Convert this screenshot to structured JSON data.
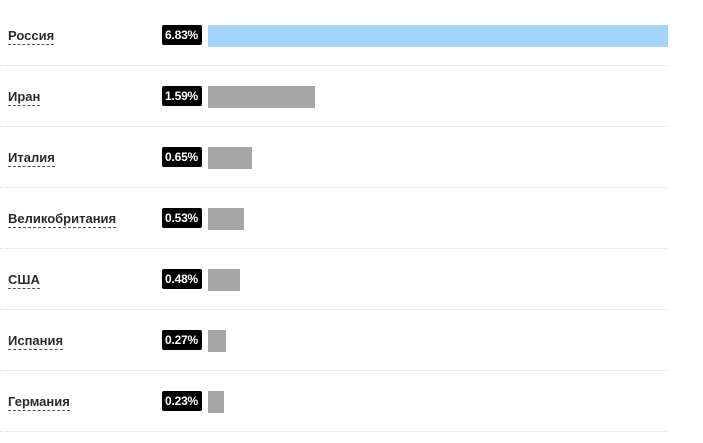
{
  "chart_data": {
    "type": "bar",
    "orientation": "horizontal",
    "categories": [
      "Россия",
      "Иран",
      "Италия",
      "Великобритания",
      "США",
      "Испания",
      "Германия"
    ],
    "values": [
      6.83,
      1.59,
      0.65,
      0.53,
      0.48,
      0.27,
      0.23
    ],
    "value_labels": [
      "6.83%",
      "1.59%",
      "0.65%",
      "0.53%",
      "0.48%",
      "0.27%",
      "0.23%"
    ],
    "xlim": [
      0,
      6.83
    ],
    "highlight_color": "#a3d4fb",
    "bar_color": "#a6a6a6",
    "badge_color": "#000000",
    "grid": false
  }
}
